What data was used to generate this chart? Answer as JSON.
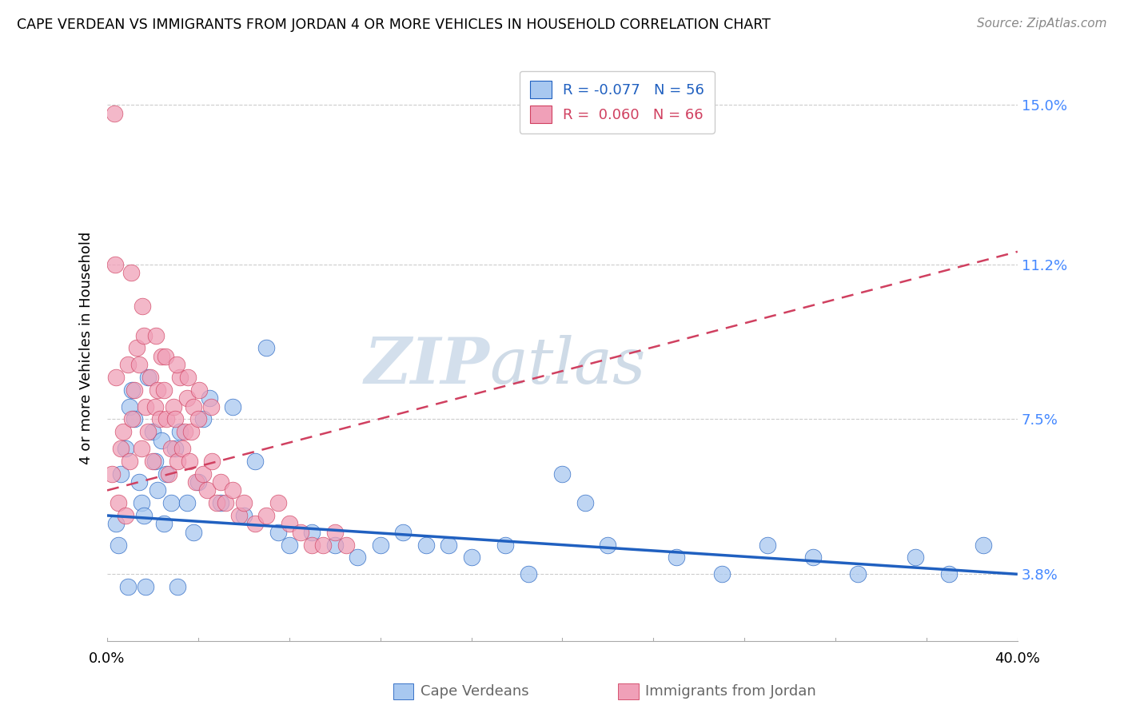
{
  "title": "CAPE VERDEAN VS IMMIGRANTS FROM JORDAN 4 OR MORE VEHICLES IN HOUSEHOLD CORRELATION CHART",
  "source": "Source: ZipAtlas.com",
  "ylabel": "4 or more Vehicles in Household",
  "y_ticks": [
    3.8,
    7.5,
    11.2,
    15.0
  ],
  "y_tick_labels": [
    "3.8%",
    "7.5%",
    "11.2%",
    "15.0%"
  ],
  "x_min": 0.0,
  "x_max": 40.0,
  "y_min": 2.2,
  "y_max": 16.2,
  "blue_R": -0.077,
  "blue_N": 56,
  "pink_R": 0.06,
  "pink_N": 66,
  "blue_color": "#a8c8f0",
  "pink_color": "#f0a0b8",
  "blue_line_color": "#2060c0",
  "pink_line_color": "#d04060",
  "blue_label": "Cape Verdeans",
  "pink_label": "Immigrants from Jordan",
  "watermark_zip": "ZIP",
  "watermark_atlas": "atlas",
  "blue_trend_x": [
    0.0,
    40.0
  ],
  "blue_trend_y": [
    5.2,
    3.8
  ],
  "pink_trend_x": [
    0.0,
    40.0
  ],
  "pink_trend_y": [
    5.8,
    11.5
  ],
  "blue_scatter_x": [
    0.4,
    0.5,
    0.6,
    0.8,
    1.0,
    1.1,
    1.2,
    1.4,
    1.5,
    1.6,
    1.8,
    2.0,
    2.1,
    2.2,
    2.4,
    2.5,
    2.6,
    2.8,
    3.0,
    3.2,
    3.5,
    3.8,
    4.0,
    4.2,
    4.5,
    5.0,
    5.5,
    6.0,
    6.5,
    7.0,
    7.5,
    8.0,
    9.0,
    10.0,
    11.0,
    12.0,
    13.0,
    14.0,
    15.0,
    16.0,
    17.5,
    18.5,
    20.0,
    21.0,
    22.0,
    25.0,
    27.0,
    29.0,
    31.0,
    33.0,
    35.5,
    37.0,
    38.5,
    0.9,
    1.7,
    3.1
  ],
  "blue_scatter_y": [
    5.0,
    4.5,
    6.2,
    6.8,
    7.8,
    8.2,
    7.5,
    6.0,
    5.5,
    5.2,
    8.5,
    7.2,
    6.5,
    5.8,
    7.0,
    5.0,
    6.2,
    5.5,
    6.8,
    7.2,
    5.5,
    4.8,
    6.0,
    7.5,
    8.0,
    5.5,
    7.8,
    5.2,
    6.5,
    9.2,
    4.8,
    4.5,
    4.8,
    4.5,
    4.2,
    4.5,
    4.8,
    4.5,
    4.5,
    4.2,
    4.5,
    3.8,
    6.2,
    5.5,
    4.5,
    4.2,
    3.8,
    4.5,
    4.2,
    3.8,
    4.2,
    3.8,
    4.5,
    3.5,
    3.5,
    3.5
  ],
  "pink_scatter_x": [
    0.2,
    0.3,
    0.4,
    0.5,
    0.6,
    0.7,
    0.8,
    0.9,
    1.0,
    1.1,
    1.2,
    1.3,
    1.4,
    1.5,
    1.6,
    1.7,
    1.8,
    1.9,
    2.0,
    2.1,
    2.2,
    2.3,
    2.4,
    2.5,
    2.6,
    2.7,
    2.8,
    2.9,
    3.0,
    3.1,
    3.2,
    3.3,
    3.4,
    3.5,
    3.6,
    3.7,
    3.8,
    3.9,
    4.0,
    4.2,
    4.4,
    4.6,
    4.8,
    5.0,
    5.2,
    5.5,
    5.8,
    6.0,
    6.5,
    7.0,
    7.5,
    8.0,
    8.5,
    9.0,
    9.5,
    10.0,
    10.5,
    0.35,
    1.05,
    1.55,
    2.15,
    2.55,
    3.05,
    3.55,
    4.05,
    4.55
  ],
  "pink_scatter_y": [
    6.2,
    14.8,
    8.5,
    5.5,
    6.8,
    7.2,
    5.2,
    8.8,
    6.5,
    7.5,
    8.2,
    9.2,
    8.8,
    6.8,
    9.5,
    7.8,
    7.2,
    8.5,
    6.5,
    7.8,
    8.2,
    7.5,
    9.0,
    8.2,
    7.5,
    6.2,
    6.8,
    7.8,
    7.5,
    6.5,
    8.5,
    6.8,
    7.2,
    8.0,
    6.5,
    7.2,
    7.8,
    6.0,
    7.5,
    6.2,
    5.8,
    6.5,
    5.5,
    6.0,
    5.5,
    5.8,
    5.2,
    5.5,
    5.0,
    5.2,
    5.5,
    5.0,
    4.8,
    4.5,
    4.5,
    4.8,
    4.5,
    11.2,
    11.0,
    10.2,
    9.5,
    9.0,
    8.8,
    8.5,
    8.2,
    7.8
  ]
}
